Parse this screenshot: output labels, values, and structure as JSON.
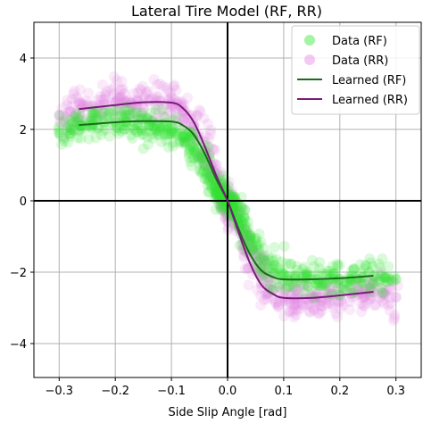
{
  "chart_data": {
    "type": "scatter",
    "title": "Lateral Tire Model (RF, RR)",
    "xlabel": "Side Slip Angle [rad]",
    "ylabel": "",
    "xlim": [
      -0.345,
      0.345
    ],
    "ylim": [
      -4.95,
      5.0
    ],
    "xticks": [
      -0.3,
      -0.2,
      -0.1,
      0.0,
      0.1,
      0.2,
      0.3
    ],
    "xtick_labels": [
      "−0.3",
      "−0.2",
      "−0.1",
      "0.0",
      "0.1",
      "0.2",
      "0.3"
    ],
    "yticks": [
      -4,
      -2,
      0,
      2,
      4
    ],
    "ytick_labels": [
      "−4",
      "−2",
      "0",
      "2",
      "4"
    ],
    "grid": true,
    "legend_position": "top-right",
    "series": [
      {
        "name": "Data (RF)",
        "kind": "scatter",
        "color": "#33e633",
        "note_points": "dense cloud along learned RF curve",
        "x": [
          -0.3,
          -0.28,
          -0.26,
          -0.24,
          -0.22,
          -0.2,
          -0.18,
          -0.16,
          -0.14,
          -0.12,
          -0.1,
          -0.08,
          -0.06,
          -0.04,
          -0.03,
          -0.02,
          -0.01,
          0.0,
          0.01,
          0.02,
          0.03,
          0.04,
          0.06,
          0.08,
          0.1,
          0.12,
          0.14,
          0.16,
          0.18,
          0.2,
          0.22,
          0.24,
          0.26,
          0.28,
          0.3
        ],
        "y": [
          1.9,
          2.0,
          2.1,
          2.15,
          2.2,
          2.2,
          2.2,
          2.15,
          2.1,
          2.05,
          1.95,
          1.8,
          1.5,
          1.0,
          0.7,
          0.4,
          0.15,
          0.0,
          -0.2,
          -0.5,
          -0.8,
          -1.1,
          -1.6,
          -1.9,
          -2.05,
          -2.1,
          -2.15,
          -2.2,
          -2.2,
          -2.2,
          -2.2,
          -2.15,
          -2.1,
          -2.15,
          -2.2
        ]
      },
      {
        "name": "Data (RR)",
        "kind": "scatter",
        "color": "#e68ae6",
        "x": [
          -0.3,
          -0.28,
          -0.26,
          -0.24,
          -0.22,
          -0.2,
          -0.18,
          -0.16,
          -0.14,
          -0.12,
          -0.1,
          -0.08,
          -0.06,
          -0.04,
          -0.03,
          -0.02,
          -0.01,
          0.0,
          0.01,
          0.02,
          0.03,
          0.04,
          0.06,
          0.08,
          0.1,
          0.12,
          0.14,
          0.16,
          0.18,
          0.2,
          0.22,
          0.24,
          0.26,
          0.28,
          0.3
        ],
        "y": [
          2.4,
          2.5,
          2.6,
          2.65,
          2.7,
          2.75,
          2.75,
          2.8,
          2.8,
          2.8,
          2.7,
          2.5,
          2.1,
          1.4,
          1.0,
          0.6,
          0.2,
          0.0,
          -0.3,
          -0.7,
          -1.1,
          -1.5,
          -2.1,
          -2.5,
          -2.7,
          -2.75,
          -2.75,
          -2.7,
          -2.7,
          -2.65,
          -2.6,
          -2.6,
          -2.55,
          -2.6,
          -2.7
        ]
      },
      {
        "name": "Learned (RF)",
        "kind": "line",
        "color": "#1a6b1a",
        "x": [
          -0.265,
          -0.2,
          -0.15,
          -0.1,
          -0.08,
          -0.06,
          -0.04,
          -0.02,
          0.0,
          0.02,
          0.04,
          0.06,
          0.08,
          0.1,
          0.15,
          0.2,
          0.26
        ],
        "y": [
          2.12,
          2.2,
          2.23,
          2.22,
          2.12,
          1.85,
          1.3,
          0.6,
          0.0,
          -0.8,
          -1.5,
          -1.95,
          -2.13,
          -2.2,
          -2.2,
          -2.17,
          -2.1
        ]
      },
      {
        "name": "Learned (RR)",
        "kind": "line",
        "color": "#7a1a7a",
        "x": [
          -0.265,
          -0.2,
          -0.15,
          -0.1,
          -0.08,
          -0.06,
          -0.04,
          -0.02,
          0.0,
          0.02,
          0.04,
          0.06,
          0.08,
          0.1,
          0.15,
          0.2,
          0.26
        ],
        "y": [
          2.57,
          2.68,
          2.76,
          2.75,
          2.6,
          2.2,
          1.5,
          0.7,
          0.0,
          -0.9,
          -1.75,
          -2.35,
          -2.6,
          -2.72,
          -2.72,
          -2.65,
          -2.55
        ]
      }
    ]
  }
}
